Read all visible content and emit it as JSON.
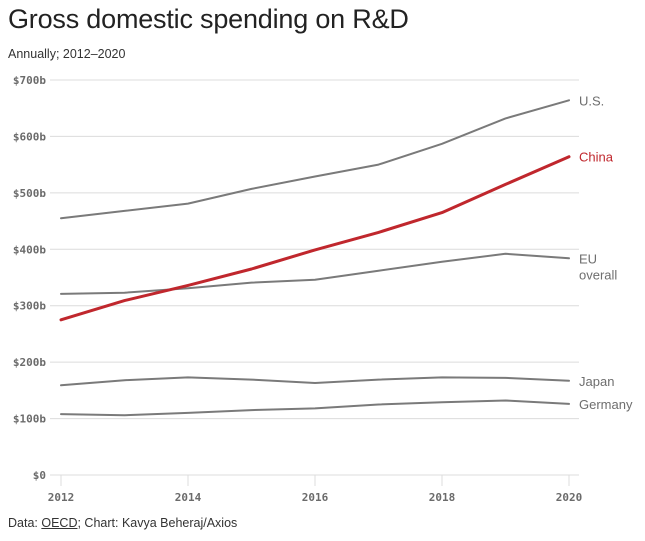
{
  "header": {
    "title": "Gross domestic spending on R&D",
    "subtitle": "Annually; 2012–2020"
  },
  "footer": {
    "prefix": "Data: ",
    "source_link": "OECD",
    "suffix": "; Chart: Kavya Beheraj/Axios"
  },
  "chart_data": {
    "type": "line",
    "title": "Gross domestic spending on R&D",
    "subtitle": "Annually; 2012–2020",
    "xlabel": "",
    "ylabel": "",
    "x": [
      2012,
      2013,
      2014,
      2015,
      2016,
      2017,
      2018,
      2019,
      2020
    ],
    "x_ticks": [
      "2012",
      "2014",
      "2016",
      "2018",
      "2020"
    ],
    "y_ticks": [
      "$0",
      "$100b",
      "$200b",
      "$300b",
      "$400b",
      "$500b",
      "$600b",
      "$700b"
    ],
    "y_tick_values": [
      0,
      100,
      200,
      300,
      400,
      500,
      600,
      700
    ],
    "ylim": [
      0,
      700
    ],
    "xlim": [
      2012,
      2020
    ],
    "grid": true,
    "legend": "direct labels at right end of lines",
    "units": "billions USD",
    "series": [
      {
        "name": "U.S.",
        "label": "U.S.",
        "color": "#7a7a7a",
        "values": [
          455,
          468,
          481,
          507,
          529,
          550,
          587,
          632,
          664
        ]
      },
      {
        "name": "China",
        "label": "China",
        "color": "#c0272d",
        "values": [
          275,
          309,
          336,
          365,
          399,
          430,
          465,
          515,
          564
        ]
      },
      {
        "name": "EU overall",
        "label": "EU|overall",
        "color": "#7a7a7a",
        "values": [
          321,
          323,
          331,
          341,
          346,
          362,
          378,
          392,
          384
        ]
      },
      {
        "name": "Japan",
        "label": "Japan",
        "color": "#7a7a7a",
        "values": [
          159,
          168,
          173,
          169,
          163,
          169,
          173,
          172,
          167
        ]
      },
      {
        "name": "Germany",
        "label": "Germany",
        "color": "#7a7a7a",
        "values": [
          108,
          106,
          110,
          115,
          118,
          125,
          129,
          132,
          126
        ]
      }
    ]
  }
}
